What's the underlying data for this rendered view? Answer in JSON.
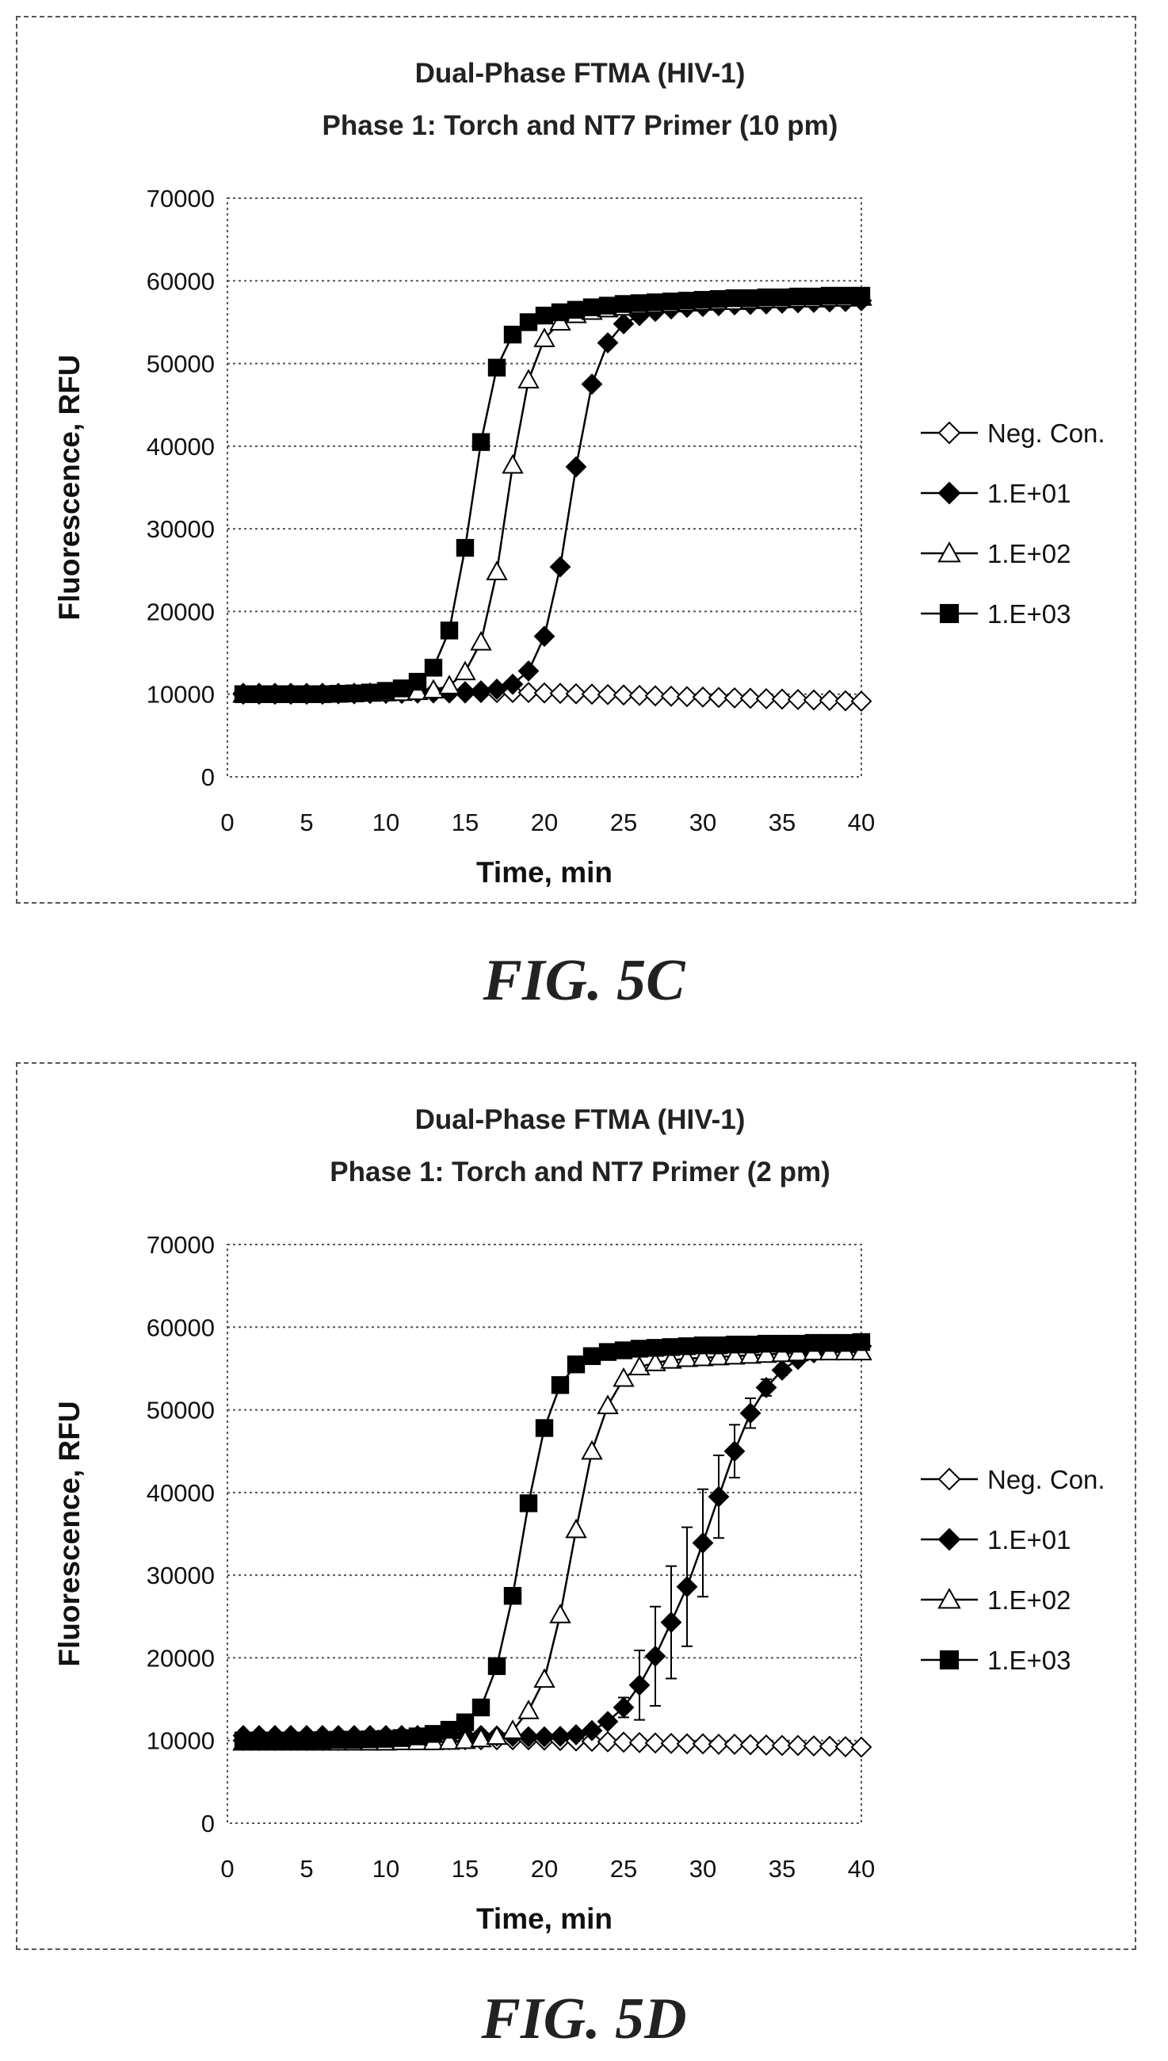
{
  "chart_data": [
    {
      "type": "line",
      "figure_label": "FIG. 5C",
      "title": "Dual-Phase FTMA (HIV-1)",
      "subtitle": "Phase 1: Torch and NT7 Primer (10 pm)",
      "xlabel": "Time, min",
      "ylabel": "Fluorescence, RFU",
      "xlim": [
        0,
        40
      ],
      "ylim": [
        0,
        70000
      ],
      "xticks": [
        "0",
        "5",
        "10",
        "15",
        "20",
        "25",
        "30",
        "35",
        "40"
      ],
      "yticks": [
        "0",
        "10000",
        "20000",
        "30000",
        "40000",
        "50000",
        "60000",
        "70000"
      ],
      "grid": "horizontal dotted",
      "legend_position": "right",
      "x": [
        1,
        2,
        3,
        4,
        5,
        6,
        7,
        8,
        9,
        10,
        11,
        12,
        13,
        14,
        15,
        16,
        17,
        18,
        19,
        20,
        21,
        22,
        23,
        24,
        25,
        26,
        27,
        28,
        29,
        30,
        31,
        32,
        33,
        34,
        35,
        36,
        37,
        38,
        39,
        40
      ],
      "series": [
        {
          "name": "Neg. Con.",
          "marker": "diamond-open",
          "values": [
            10000,
            10000,
            10000,
            10000,
            10000,
            10000,
            10050,
            10050,
            10100,
            10100,
            10100,
            10150,
            10150,
            10150,
            10150,
            10200,
            10200,
            10200,
            10200,
            10150,
            10100,
            10050,
            10000,
            9950,
            9900,
            9850,
            9800,
            9750,
            9700,
            9650,
            9600,
            9550,
            9500,
            9450,
            9400,
            9350,
            9300,
            9250,
            9200,
            9150
          ]
        },
        {
          "name": "1.E+01",
          "marker": "diamond-filled",
          "values": [
            10100,
            10100,
            10100,
            10100,
            10100,
            10100,
            10100,
            10100,
            10100,
            10150,
            10150,
            10150,
            10200,
            10200,
            10300,
            10400,
            10600,
            11200,
            12800,
            17000,
            25400,
            37500,
            47500,
            52500,
            54800,
            55800,
            56300,
            56600,
            56800,
            56900,
            57000,
            57100,
            57150,
            57200,
            57300,
            57350,
            57400,
            57450,
            57500,
            57600
          ]
        },
        {
          "name": "1.E+02",
          "marker": "triangle-open",
          "values": [
            10000,
            10000,
            10000,
            10000,
            10000,
            10000,
            10000,
            10050,
            10100,
            10150,
            10200,
            10300,
            10500,
            11000,
            12700,
            16300,
            24800,
            37700,
            48000,
            53000,
            55000,
            55900,
            56300,
            56600,
            56800,
            57000,
            57100,
            57200,
            57300,
            57400,
            57500,
            57500,
            57600,
            57700,
            57700,
            57800,
            57800,
            57900,
            57900,
            58000
          ]
        },
        {
          "name": "1.E+03",
          "marker": "square-filled",
          "values": [
            10000,
            10000,
            10000,
            10000,
            10000,
            10000,
            10050,
            10100,
            10200,
            10400,
            10700,
            11500,
            13200,
            17700,
            27700,
            40500,
            49500,
            53500,
            55000,
            55800,
            56200,
            56500,
            56800,
            57000,
            57200,
            57300,
            57400,
            57500,
            57600,
            57700,
            57800,
            57900,
            57900,
            58000,
            58000,
            58100,
            58100,
            58200,
            58200,
            58200
          ]
        }
      ]
    },
    {
      "type": "line",
      "figure_label": "FIG. 5D",
      "title": "Dual-Phase FTMA (HIV-1)",
      "subtitle": "Phase 1: Torch and NT7 Primer (2 pm)",
      "xlabel": "Time, min",
      "ylabel": "Fluorescence, RFU",
      "xlim": [
        0,
        40
      ],
      "ylim": [
        0,
        70000
      ],
      "xticks": [
        "0",
        "5",
        "10",
        "15",
        "20",
        "25",
        "30",
        "35",
        "40"
      ],
      "yticks": [
        "0",
        "10000",
        "20000",
        "30000",
        "40000",
        "50000",
        "60000",
        "70000"
      ],
      "grid": "horizontal dotted",
      "legend_position": "right",
      "x": [
        1,
        2,
        3,
        4,
        5,
        6,
        7,
        8,
        9,
        10,
        11,
        12,
        13,
        14,
        15,
        16,
        17,
        18,
        19,
        20,
        21,
        22,
        23,
        24,
        25,
        26,
        27,
        28,
        29,
        30,
        31,
        32,
        33,
        34,
        35,
        36,
        37,
        38,
        39,
        40
      ],
      "series": [
        {
          "name": "Neg. Con.",
          "marker": "diamond-open",
          "values": [
            10000,
            10000,
            10000,
            10000,
            10000,
            10000,
            10000,
            10050,
            10050,
            10050,
            10100,
            10100,
            10100,
            10100,
            10100,
            10100,
            10100,
            10100,
            10100,
            10050,
            10000,
            9950,
            9900,
            9850,
            9800,
            9750,
            9700,
            9650,
            9600,
            9600,
            9550,
            9550,
            9500,
            9450,
            9400,
            9400,
            9350,
            9300,
            9250,
            9200
          ]
        },
        {
          "name": "1.E+01",
          "marker": "diamond-filled",
          "values": [
            10600,
            10600,
            10600,
            10600,
            10600,
            10600,
            10600,
            10600,
            10600,
            10600,
            10600,
            10600,
            10600,
            10600,
            10600,
            10600,
            10550,
            10500,
            10450,
            10450,
            10500,
            10700,
            11200,
            12300,
            14000,
            16700,
            20200,
            24300,
            28600,
            33900,
            39500,
            45000,
            49600,
            52700,
            54800,
            56100,
            56900,
            57300,
            57600,
            57700
          ],
          "error": [
            0,
            0,
            0,
            0,
            0,
            0,
            0,
            0,
            0,
            0,
            0,
            0,
            0,
            0,
            0,
            0,
            0,
            0,
            0,
            0,
            0,
            0,
            200,
            400,
            1200,
            4200,
            6000,
            6800,
            7200,
            6500,
            5000,
            3200,
            1800,
            1000,
            600,
            400,
            300,
            200,
            150,
            100
          ]
        },
        {
          "name": "1.E+02",
          "marker": "triangle-open",
          "values": [
            9800,
            9800,
            9800,
            9800,
            9800,
            9800,
            9800,
            9800,
            9800,
            9800,
            9850,
            9850,
            9850,
            9900,
            10000,
            10200,
            10500,
            11200,
            13600,
            17400,
            25200,
            35500,
            45000,
            50500,
            53800,
            55200,
            55700,
            56000,
            56200,
            56300,
            56400,
            56500,
            56600,
            56700,
            56800,
            56900,
            57000,
            57000,
            57000,
            57000
          ]
        },
        {
          "name": "1.E+03",
          "marker": "square-filled",
          "values": [
            10000,
            10000,
            10000,
            10000,
            10000,
            10050,
            10100,
            10100,
            10150,
            10200,
            10300,
            10500,
            10800,
            11300,
            12200,
            14000,
            19000,
            27500,
            38700,
            47800,
            53000,
            55500,
            56500,
            57000,
            57200,
            57400,
            57500,
            57600,
            57700,
            57800,
            57800,
            57900,
            57900,
            58000,
            58000,
            58000,
            58100,
            58100,
            58100,
            58200
          ]
        }
      ]
    }
  ]
}
